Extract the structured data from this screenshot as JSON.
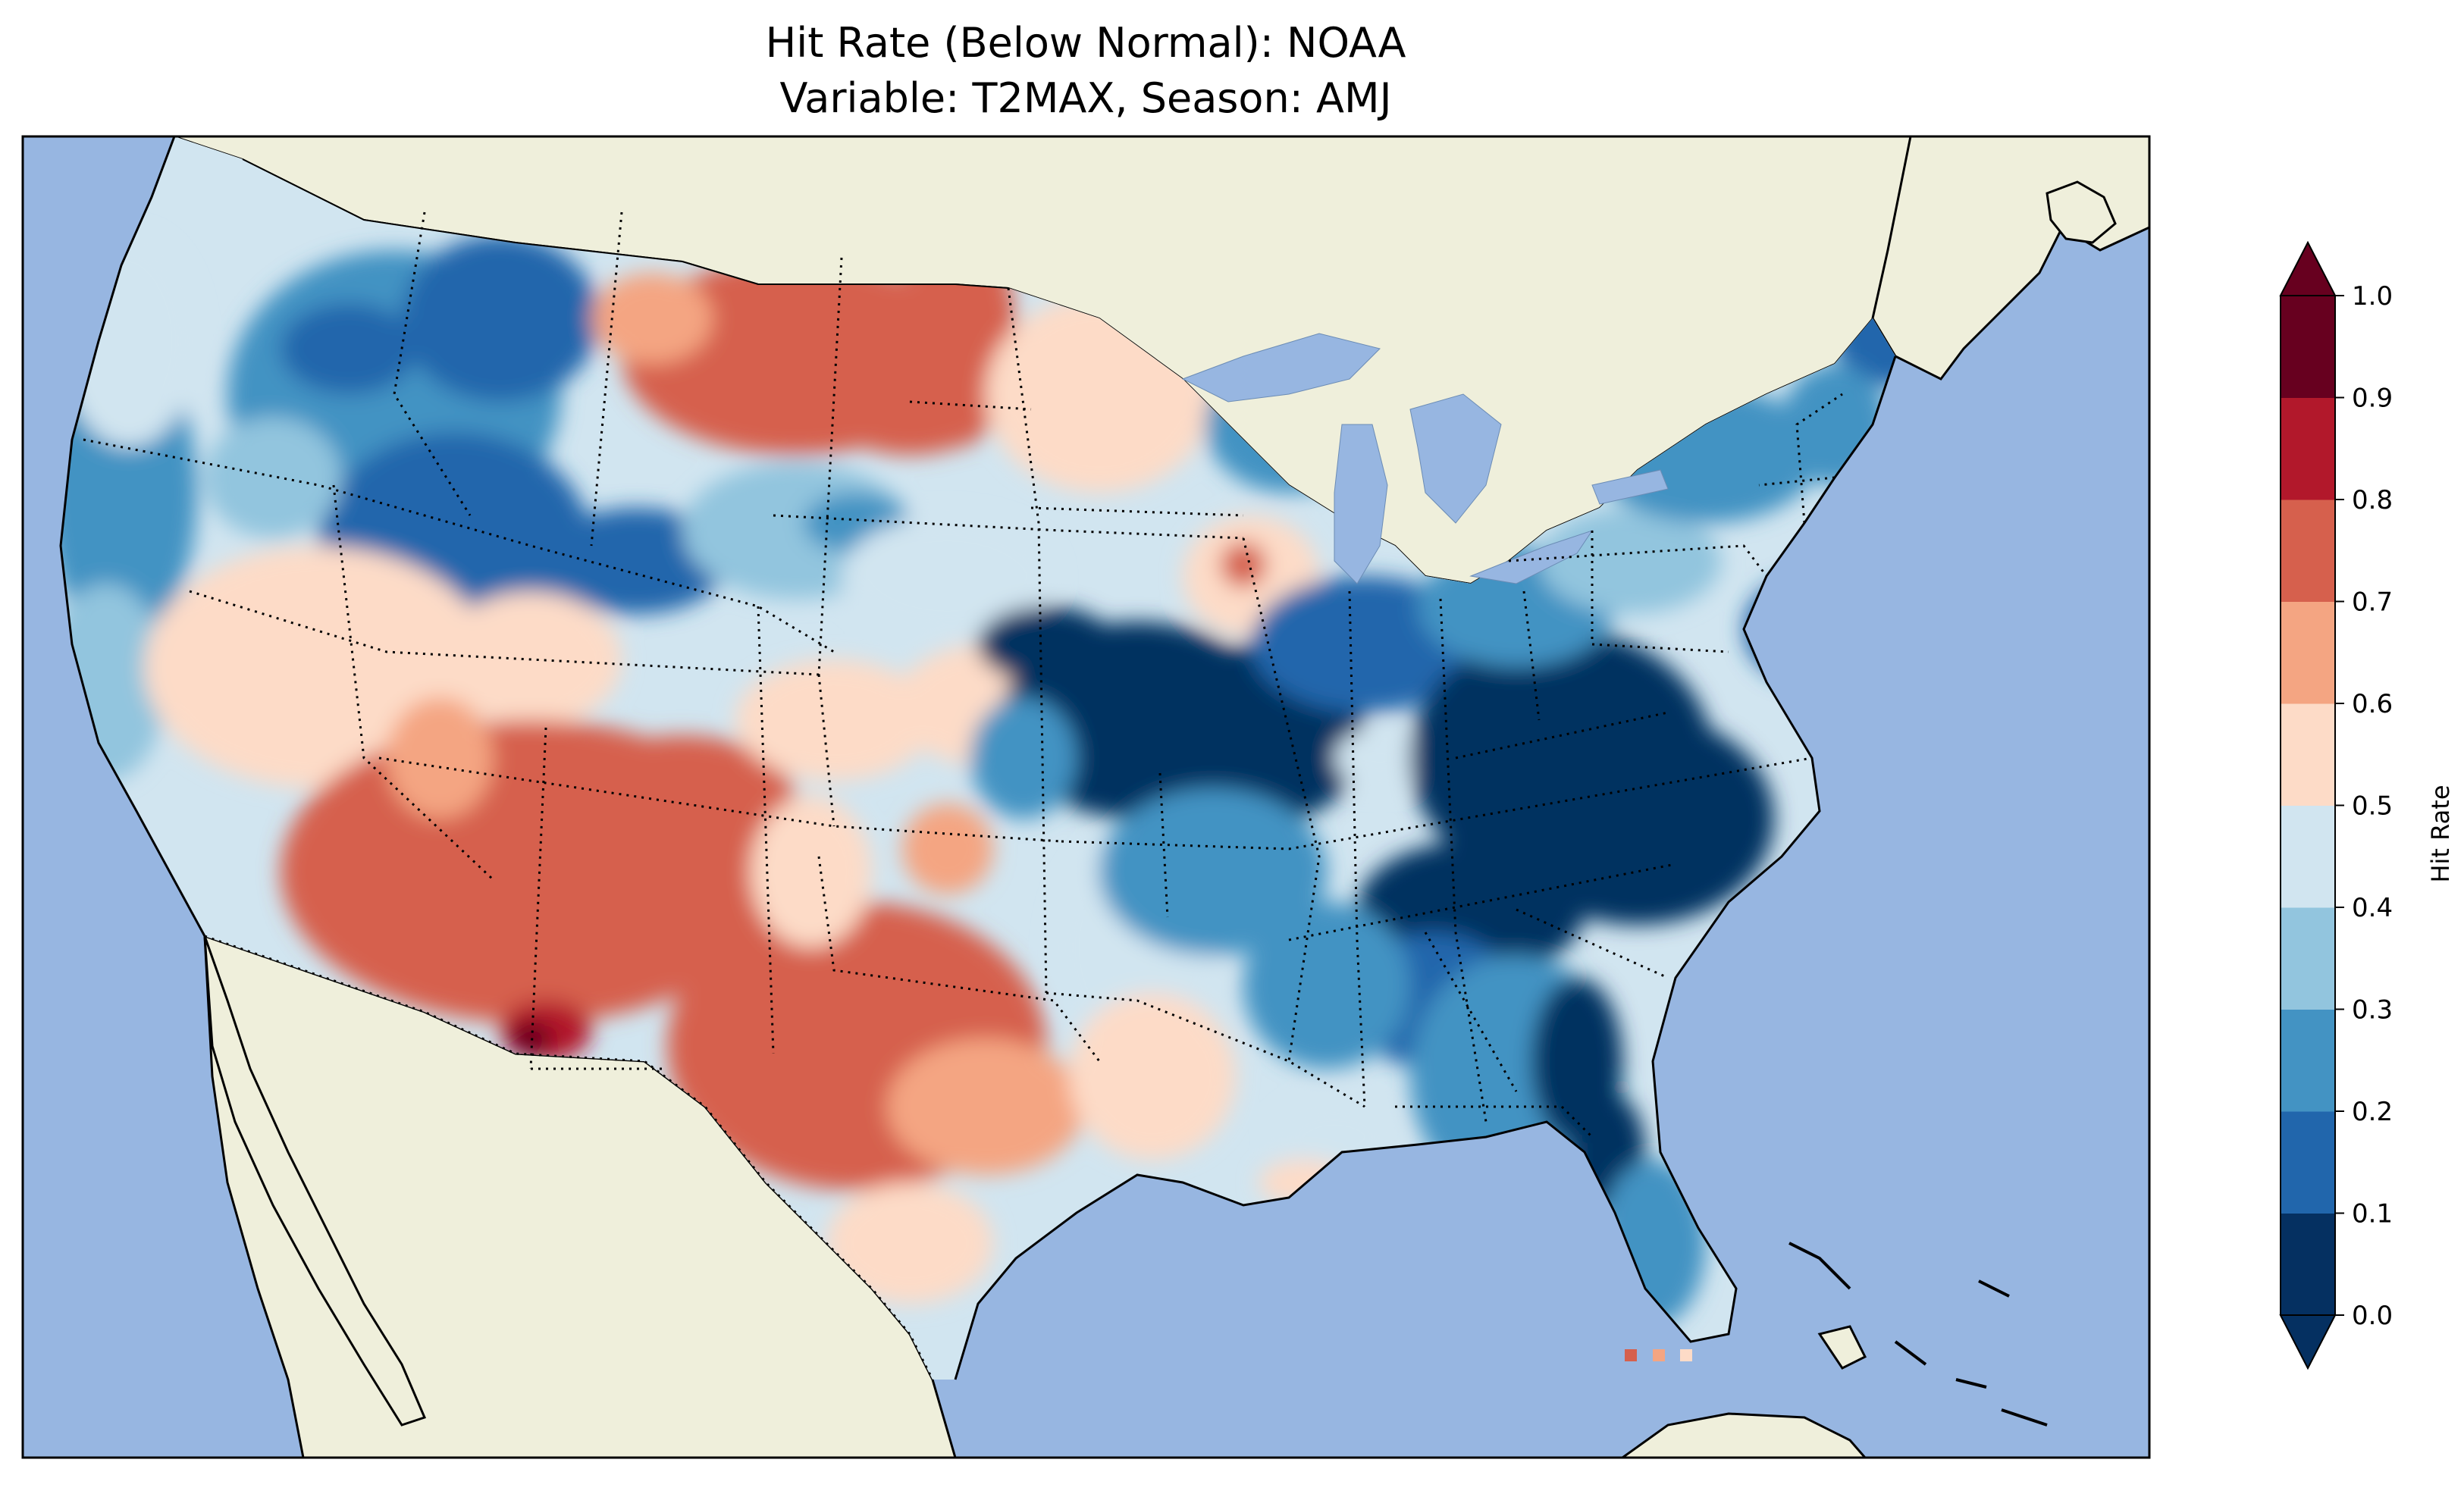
{
  "title_line1": "Hit Rate (Below Normal): NOAA",
  "title_line2": "Variable: T2MAX, Season: AMJ",
  "colorbar": {
    "label": "Hit Rate",
    "ticks": [
      "0.0",
      "0.1",
      "0.2",
      "0.3",
      "0.4",
      "0.5",
      "0.6",
      "0.7",
      "0.8",
      "0.9",
      "1.0"
    ],
    "bin_colors": [
      "#053061",
      "#2166ac",
      "#4393c3",
      "#92c5de",
      "#d1e5f0",
      "#fddbc7",
      "#f4a582",
      "#d6604d",
      "#b2182b",
      "#67001f"
    ],
    "extend": "both"
  },
  "map_colors": {
    "ocean": "#97b6e1",
    "land": "#efefdb",
    "coast": "#000000"
  },
  "chart_data": {
    "type": "heatmap",
    "title": "Hit Rate (Below Normal): NOAA / Variable: T2MAX, Season: AMJ",
    "region": "Contiguous United States",
    "colorbar_label": "Hit Rate",
    "vmin": 0.0,
    "vmax": 1.0,
    "levels": [
      0.0,
      0.1,
      0.2,
      0.3,
      0.4,
      0.5,
      0.6,
      0.7,
      0.8,
      0.9,
      1.0
    ],
    "regional_values": [
      {
        "region": "Pacific Northwest coast",
        "value": 0.25
      },
      {
        "region": "Northern Rockies (Idaho/Montana)",
        "value": 0.2
      },
      {
        "region": "Montana plains / western North Dakota",
        "value": 0.75
      },
      {
        "region": "Nevada / Utah",
        "value": 0.55
      },
      {
        "region": "Arizona / New Mexico",
        "value": 0.75
      },
      {
        "region": "SE Arizona / SW New Mexico",
        "value": 0.95
      },
      {
        "region": "Texas",
        "value": 0.75
      },
      {
        "region": "Central Plains",
        "value": 0.5
      },
      {
        "region": "Missouri / Illinois",
        "value": 0.05
      },
      {
        "region": "Tennessee / Carolinas / Virginia",
        "value": 0.05
      },
      {
        "region": "Georgia / north Florida",
        "value": 0.1
      },
      {
        "region": "Florida peninsula",
        "value": 0.25
      },
      {
        "region": "Northeast / New England",
        "value": 0.3
      },
      {
        "region": "Great Lakes",
        "value": 0.35
      },
      {
        "region": "Gulf Coast (Louisiana)",
        "value": 0.55
      }
    ]
  }
}
